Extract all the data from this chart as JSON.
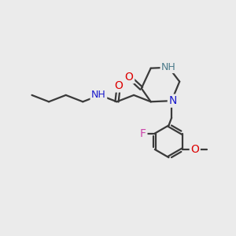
{
  "bg_color": "#ebebeb",
  "bond_color": "#3a3a3a",
  "bond_width": 1.6,
  "atom_colors": {
    "O": "#dd0000",
    "N": "#1a1acc",
    "F": "#cc44aa",
    "H_label": "#4a7a8a",
    "C": "#3a3a3a"
  },
  "font_size": 10,
  "figsize": [
    3.0,
    3.0
  ],
  "dpi": 100
}
